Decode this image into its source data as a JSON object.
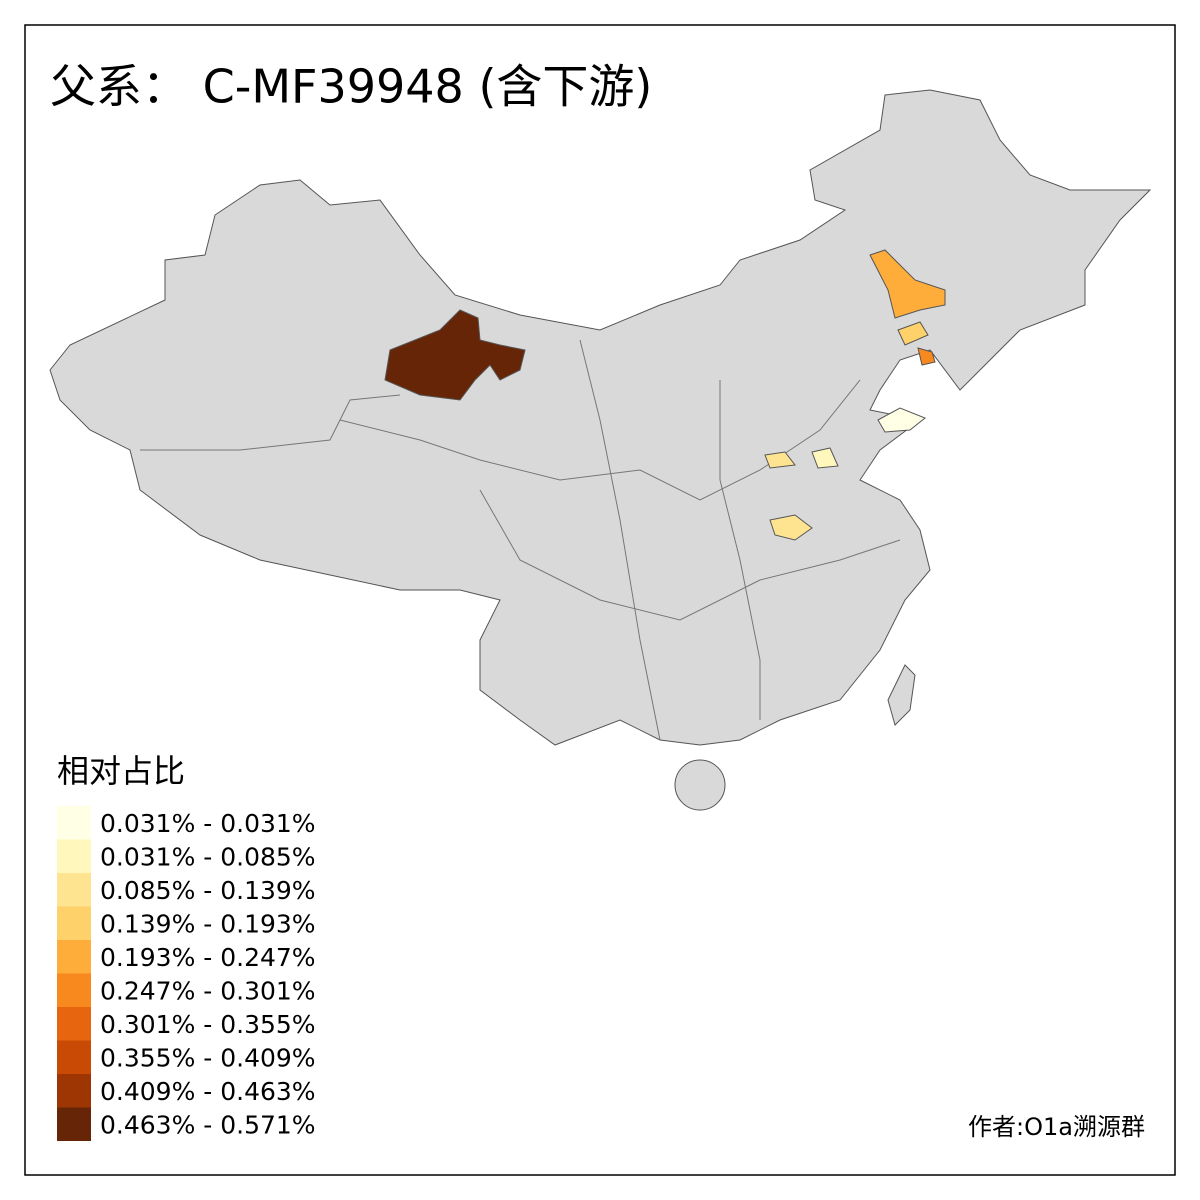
{
  "title": "父系： C-MF39948 (含下游)",
  "legend": {
    "title": "相对占比",
    "items": [
      {
        "label": "0.031% - 0.031%",
        "color": "#ffffe5"
      },
      {
        "label": "0.031% - 0.085%",
        "color": "#fff7bc"
      },
      {
        "label": "0.085% - 0.139%",
        "color": "#fee391"
      },
      {
        "label": "0.139% - 0.193%",
        "color": "#fed16a"
      },
      {
        "label": "0.193% - 0.247%",
        "color": "#feac3a"
      },
      {
        "label": "0.247% - 0.301%",
        "color": "#f8891e"
      },
      {
        "label": "0.301% - 0.355%",
        "color": "#e6650e"
      },
      {
        "label": "0.355% - 0.409%",
        "color": "#c84a04"
      },
      {
        "label": "0.409% - 0.463%",
        "color": "#9e3603"
      },
      {
        "label": "0.463% - 0.571%",
        "color": "#662506"
      }
    ]
  },
  "credit": "作者:O1a溯源群"
}
